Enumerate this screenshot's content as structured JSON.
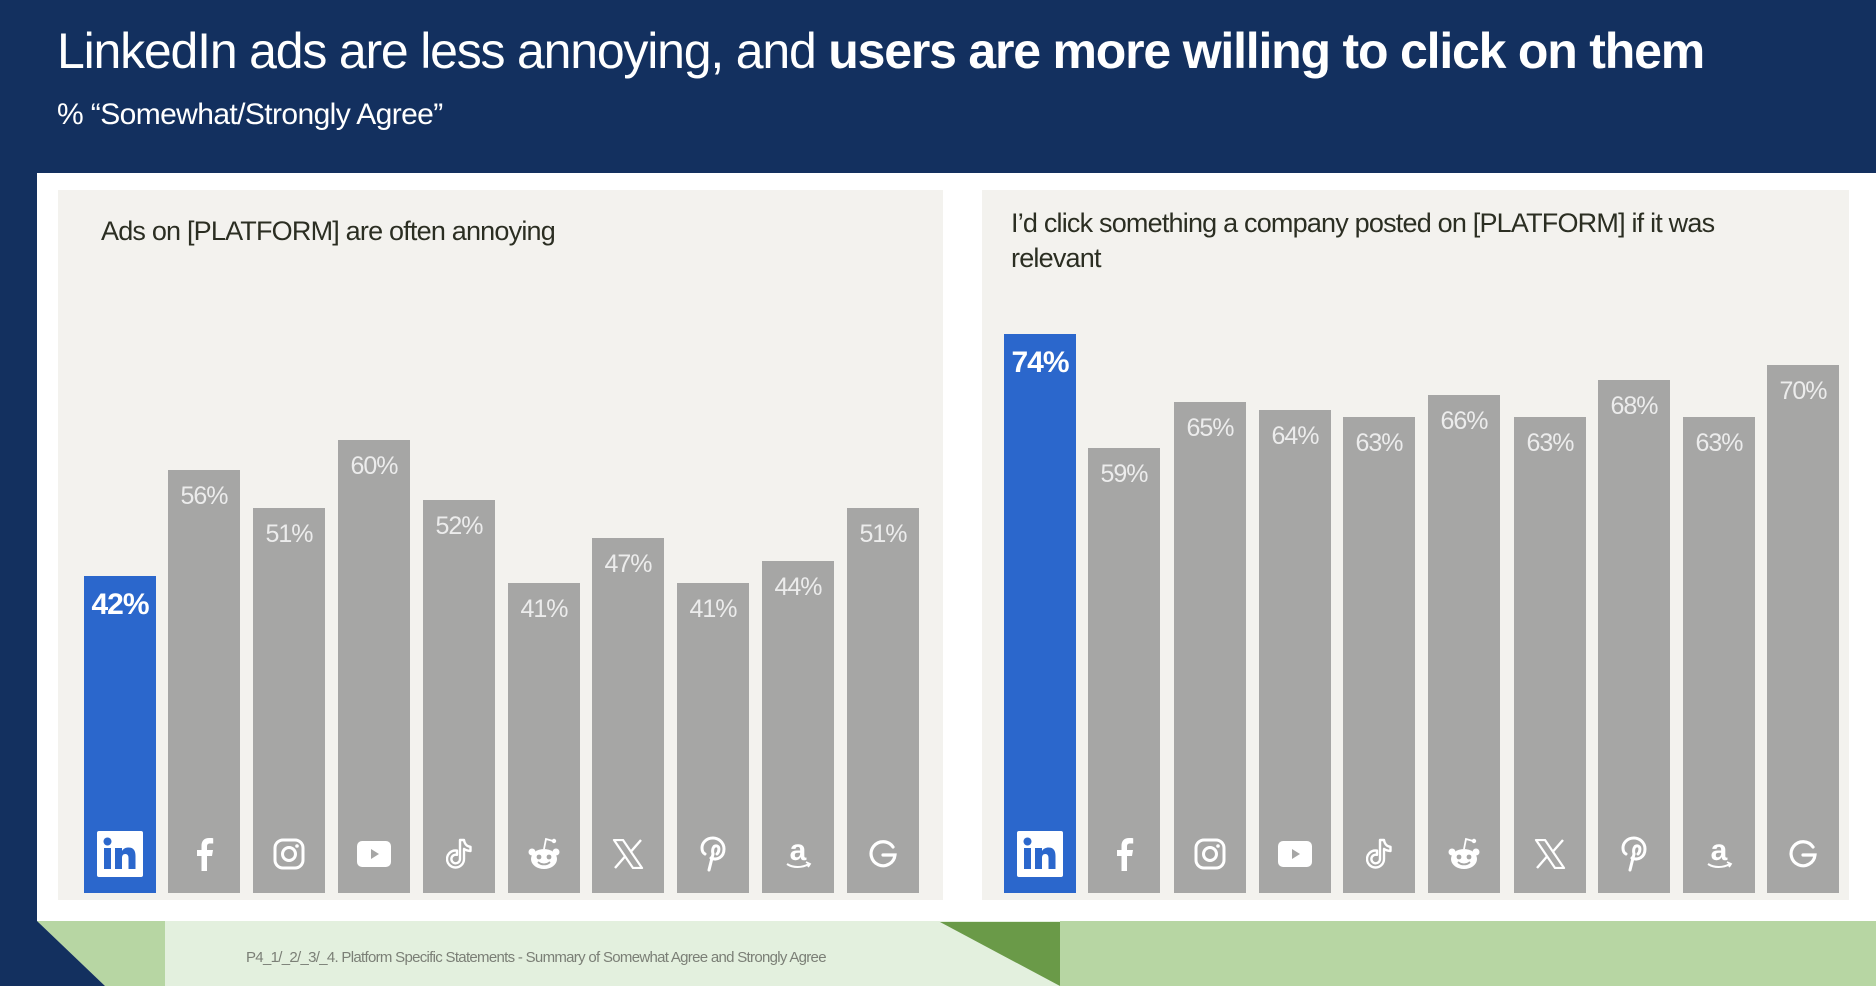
{
  "header": {
    "title_regular": "LinkedIn ads are less annoying, and ",
    "title_bold": "users are more willing to click on them",
    "subtitle": "% “Somewhat/Strongly Agree”"
  },
  "footer": {
    "source_note": "P4_1/_2/_3/_4. Platform Specific Statements - Summary of Somewhat Agree and Strongly Agree"
  },
  "colors": {
    "highlight": "#2b67cc",
    "bar": "#a6a6a5",
    "header_bg": "#13305f",
    "panel_bg": "#f3f2ee",
    "footer_light": "#e3f0de",
    "footer_mid": "#b7d6a3",
    "footer_dark": "#6a9a48"
  },
  "chart_data": [
    {
      "type": "bar",
      "title": "Ads on [PLATFORM] are often annoying",
      "xlabel": "",
      "ylabel": "",
      "ylim": [
        0,
        100
      ],
      "grid": false,
      "categories": [
        "LinkedIn",
        "Facebook",
        "Instagram",
        "YouTube",
        "TikTok",
        "Reddit",
        "X",
        "Pinterest",
        "Amazon",
        "Google"
      ],
      "icons": [
        "linkedin-icon",
        "facebook-icon",
        "instagram-icon",
        "youtube-icon",
        "tiktok-icon",
        "reddit-icon",
        "x-icon",
        "pinterest-icon",
        "amazon-icon",
        "google-icon"
      ],
      "values": [
        42,
        56,
        51,
        60,
        52,
        41,
        47,
        41,
        44,
        51
      ],
      "labels": [
        "42%",
        "56%",
        "51%",
        "60%",
        "52%",
        "41%",
        "47%",
        "41%",
        "44%",
        "51%"
      ],
      "highlight_index": 0
    },
    {
      "type": "bar",
      "title": "I’d click something a company posted on [PLATFORM] if it was relevant",
      "xlabel": "",
      "ylabel": "",
      "ylim": [
        0,
        100
      ],
      "grid": false,
      "categories": [
        "LinkedIn",
        "Facebook",
        "Instagram",
        "YouTube",
        "TikTok",
        "Reddit",
        "X",
        "Pinterest",
        "Amazon",
        "Google"
      ],
      "icons": [
        "linkedin-icon",
        "facebook-icon",
        "instagram-icon",
        "youtube-icon",
        "tiktok-icon",
        "reddit-icon",
        "x-icon",
        "pinterest-icon",
        "amazon-icon",
        "google-icon"
      ],
      "values": [
        74,
        59,
        65,
        64,
        63,
        66,
        63,
        68,
        63,
        70
      ],
      "labels": [
        "74%",
        "59%",
        "65%",
        "64%",
        "63%",
        "66%",
        "63%",
        "68%",
        "63%",
        "70%"
      ],
      "highlight_index": 0
    }
  ]
}
